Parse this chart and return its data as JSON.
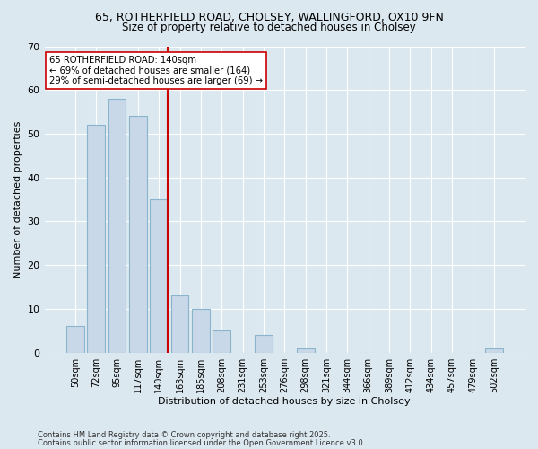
{
  "title1": "65, ROTHERFIELD ROAD, CHOLSEY, WALLINGFORD, OX10 9FN",
  "title2": "Size of property relative to detached houses in Cholsey",
  "xlabel": "Distribution of detached houses by size in Cholsey",
  "ylabel": "Number of detached properties",
  "categories": [
    "50sqm",
    "72sqm",
    "95sqm",
    "117sqm",
    "140sqm",
    "163sqm",
    "185sqm",
    "208sqm",
    "231sqm",
    "253sqm",
    "276sqm",
    "298sqm",
    "321sqm",
    "344sqm",
    "366sqm",
    "389sqm",
    "412sqm",
    "434sqm",
    "457sqm",
    "479sqm",
    "502sqm"
  ],
  "values": [
    6,
    52,
    58,
    54,
    35,
    13,
    10,
    5,
    0,
    4,
    0,
    1,
    0,
    0,
    0,
    0,
    0,
    0,
    0,
    0,
    1
  ],
  "bar_color": "#c8d8e8",
  "bar_edge_color": "#8ab4cc",
  "subject_value": "140sqm",
  "subject_line_color": "#cc0000",
  "annotation_text": "65 ROTHERFIELD ROAD: 140sqm\n← 69% of detached houses are smaller (164)\n29% of semi-detached houses are larger (69) →",
  "ylim": [
    0,
    70
  ],
  "yticks": [
    0,
    10,
    20,
    30,
    40,
    50,
    60,
    70
  ],
  "grid_color": "#ffffff",
  "bg_color": "#dce8f0",
  "footer1": "Contains HM Land Registry data © Crown copyright and database right 2025.",
  "footer2": "Contains public sector information licensed under the Open Government Licence v3.0."
}
